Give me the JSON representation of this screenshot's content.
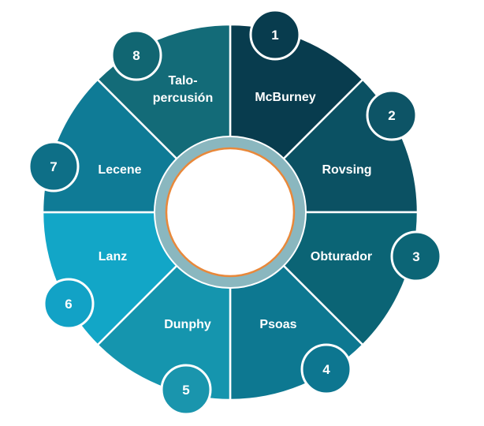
{
  "segments": [
    {
      "number": "1",
      "label": [
        "McBurney"
      ],
      "color": "#083c4e",
      "badge_color": "#083c4e"
    },
    {
      "number": "2",
      "label": [
        "Rovsing"
      ],
      "color": "#0b5163",
      "badge_color": "#0d5466"
    },
    {
      "number": "3",
      "label": [
        "Obturador"
      ],
      "color": "#0b6475",
      "badge_color": "#0c6576"
    },
    {
      "number": "4",
      "label": [
        "Psoas"
      ],
      "color": "#0d7891",
      "badge_color": "#0d7690"
    },
    {
      "number": "5",
      "label": [
        "Dunphy"
      ],
      "color": "#1595ae",
      "badge_color": "#1a95ad"
    },
    {
      "number": "6",
      "label": [
        "Lanz"
      ],
      "color": "#12a6c7",
      "badge_color": "#12a2c6"
    },
    {
      "number": "7",
      "label": [
        "Lecene"
      ],
      "color": "#0f7b96",
      "badge_color": "#0e6f87"
    },
    {
      "number": "8",
      "label": [
        "Talo-",
        "percusión"
      ],
      "color": "#136b78",
      "badge_color": "#116672"
    }
  ],
  "colors": {
    "center_ring": "#8ab7bf",
    "center_inner": "#ffffff",
    "center_accent": "#e8883a",
    "divider": "#ffffff"
  }
}
